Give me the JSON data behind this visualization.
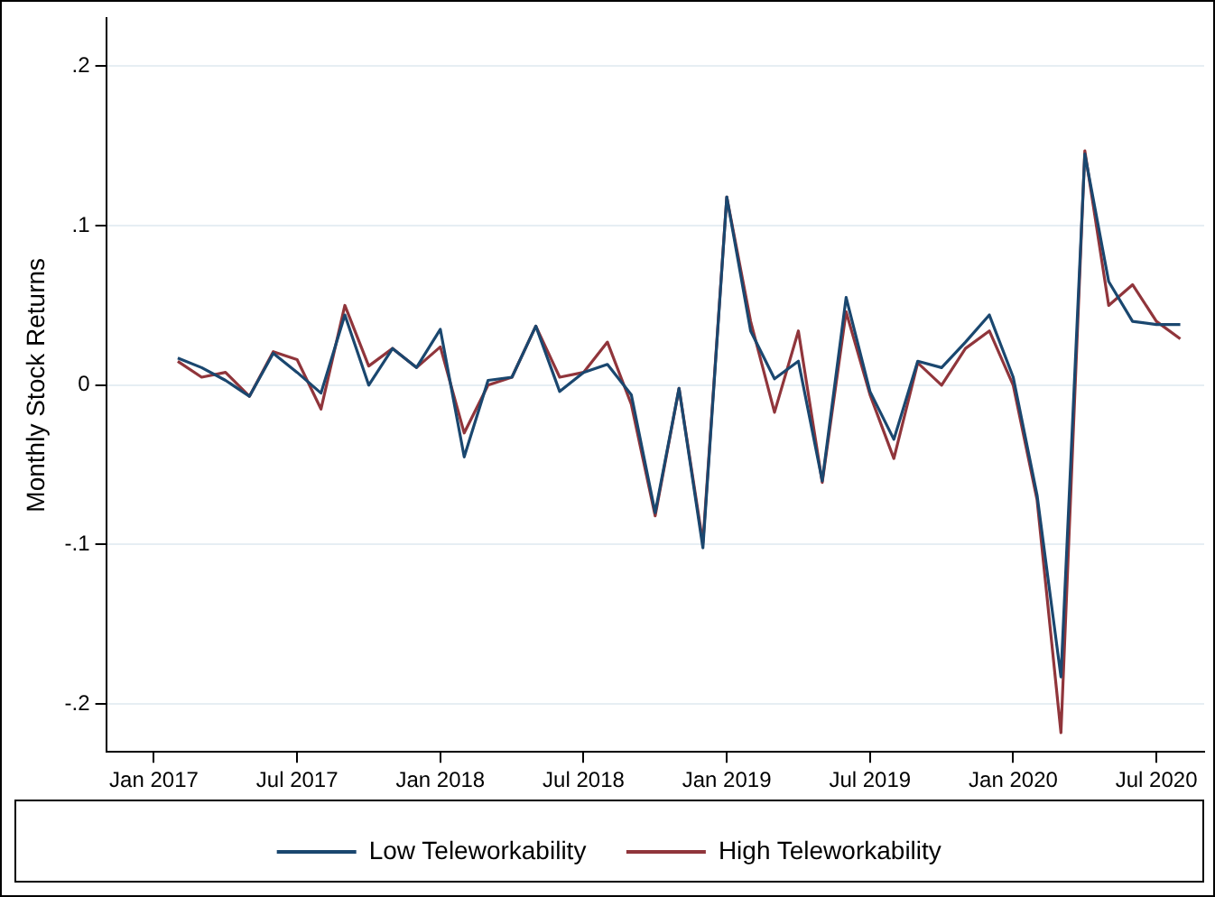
{
  "chart_data": {
    "type": "line",
    "ylabel": "Monthly Stock Returns",
    "x": [
      "2017-02",
      "2017-03",
      "2017-04",
      "2017-05",
      "2017-06",
      "2017-07",
      "2017-08",
      "2017-09",
      "2017-10",
      "2017-11",
      "2017-12",
      "2018-01",
      "2018-02",
      "2018-03",
      "2018-04",
      "2018-05",
      "2018-06",
      "2018-07",
      "2018-08",
      "2018-09",
      "2018-10",
      "2018-11",
      "2018-12",
      "2019-01",
      "2019-02",
      "2019-03",
      "2019-04",
      "2019-05",
      "2019-06",
      "2019-07",
      "2019-08",
      "2019-09",
      "2019-10",
      "2019-11",
      "2019-12",
      "2020-01",
      "2020-02",
      "2020-03",
      "2020-04",
      "2020-05",
      "2020-06",
      "2020-07",
      "2020-08"
    ],
    "series": [
      {
        "name": "Low Teleworkability",
        "color": "#1a476f",
        "values": [
          0.017,
          0.011,
          0.003,
          -0.007,
          0.02,
          0.008,
          -0.005,
          0.044,
          0.0,
          0.023,
          0.011,
          0.035,
          -0.045,
          0.003,
          0.005,
          0.037,
          -0.004,
          0.008,
          0.013,
          -0.006,
          -0.08,
          -0.002,
          -0.102,
          0.118,
          0.034,
          0.004,
          0.015,
          -0.06,
          0.055,
          -0.004,
          -0.034,
          0.015,
          0.011,
          0.027,
          0.044,
          0.005,
          -0.069,
          -0.183,
          0.145,
          0.065,
          0.04,
          0.038,
          0.038
        ]
      },
      {
        "name": "High Teleworkability",
        "color": "#90353b",
        "values": [
          0.015,
          0.005,
          0.008,
          -0.007,
          0.021,
          0.016,
          -0.015,
          0.05,
          0.012,
          0.023,
          0.011,
          0.024,
          -0.03,
          0.0,
          0.005,
          0.037,
          0.005,
          0.008,
          0.027,
          -0.012,
          -0.082,
          -0.002,
          -0.099,
          0.118,
          0.04,
          -0.017,
          0.034,
          -0.061,
          0.046,
          -0.006,
          -0.046,
          0.014,
          0.0,
          0.023,
          0.034,
          0.0,
          -0.072,
          -0.218,
          0.147,
          0.05,
          0.063,
          0.04,
          0.029
        ]
      }
    ],
    "xlim": [
      "2016-11",
      "2020-09"
    ],
    "xticks": [
      {
        "value": "2017-01",
        "label": "Jan 2017"
      },
      {
        "value": "2017-07",
        "label": "Jul 2017"
      },
      {
        "value": "2018-01",
        "label": "Jan 2018"
      },
      {
        "value": "2018-07",
        "label": "Jul 2018"
      },
      {
        "value": "2019-01",
        "label": "Jan 2019"
      },
      {
        "value": "2019-07",
        "label": "Jul 2019"
      },
      {
        "value": "2020-01",
        "label": "Jan 2020"
      },
      {
        "value": "2020-07",
        "label": "Jul 2020"
      }
    ],
    "ylim": [
      -0.23,
      0.23
    ],
    "yticks": [
      {
        "value": -0.2,
        "label": "-.2"
      },
      {
        "value": -0.1,
        "label": "-.1"
      },
      {
        "value": 0,
        "label": "0"
      },
      {
        "value": 0.1,
        "label": ".1"
      },
      {
        "value": 0.2,
        "label": ".2"
      }
    ],
    "grid": "y",
    "legend": "bottom",
    "marker": "none",
    "line_style": "solid"
  }
}
